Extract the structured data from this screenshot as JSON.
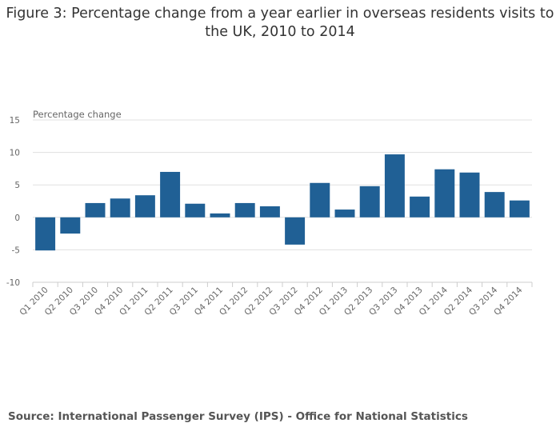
{
  "title": "Figure 3: Percentage change from a year earlier in overseas residents visits to the UK, 2010 to 2014",
  "source": "Source: International Passenger Survey (IPS) - Office for National Statistics",
  "colors": {
    "bar": "#206095",
    "grid": "#e0e0e0",
    "axis": "#cccccc"
  },
  "chart_data": {
    "type": "bar",
    "ylabel": "Percentage change",
    "xlabel": "",
    "ylim": [
      -10,
      15
    ],
    "yticks": [
      15,
      10,
      5,
      0,
      -5,
      -10
    ],
    "grid": true,
    "categories": [
      "Q1 2010",
      "Q2 2010",
      "Q3 2010",
      "Q4 2010",
      "Q1 2011",
      "Q2 2011",
      "Q3 2011",
      "Q4 2011",
      "Q1 2012",
      "Q2 2012",
      "Q3 2012",
      "Q4 2012",
      "Q1 2013",
      "Q2 2013",
      "Q3 2013",
      "Q4 2013",
      "Q1 2014",
      "Q2 2014",
      "Q3 2014",
      "Q4 2014"
    ],
    "values": [
      -5.1,
      -2.5,
      2.2,
      2.9,
      3.4,
      7.0,
      2.1,
      0.6,
      2.2,
      1.7,
      -4.2,
      5.3,
      1.2,
      4.8,
      9.7,
      3.2,
      7.4,
      6.9,
      3.9,
      2.6
    ]
  }
}
